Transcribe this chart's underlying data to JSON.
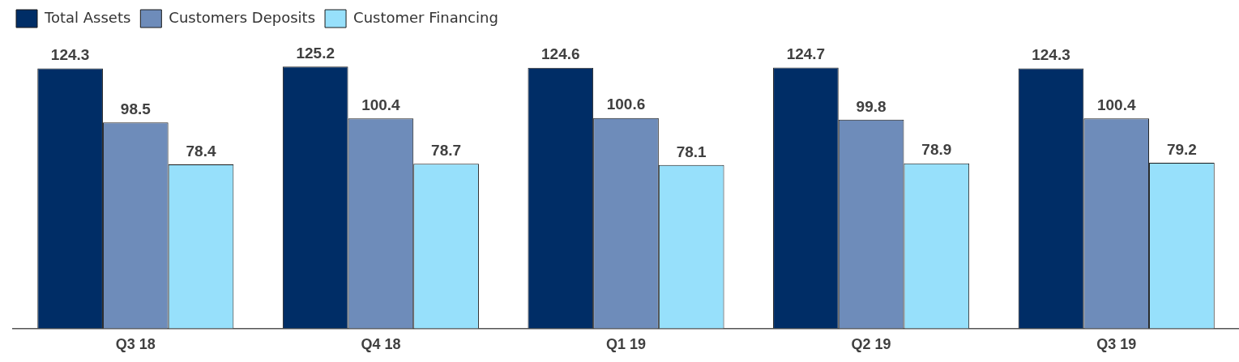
{
  "chart_data": {
    "type": "bar",
    "categories": [
      "Q3 18",
      "Q4 18",
      "Q1 19",
      "Q2 19",
      "Q3 19"
    ],
    "series": [
      {
        "name": "Total Assets",
        "color": "#002d66",
        "values": [
          124.3,
          125.2,
          124.6,
          124.7,
          124.3
        ]
      },
      {
        "name": "Customers Deposits",
        "color": "#6e8cba",
        "values": [
          98.5,
          100.4,
          100.6,
          99.8,
          100.4
        ]
      },
      {
        "name": "Customer Financing",
        "color": "#97e0fb",
        "values": [
          78.4,
          78.7,
          78.1,
          78.9,
          79.2
        ]
      }
    ],
    "data_labels": true,
    "legend": "top left",
    "grid": false
  }
}
